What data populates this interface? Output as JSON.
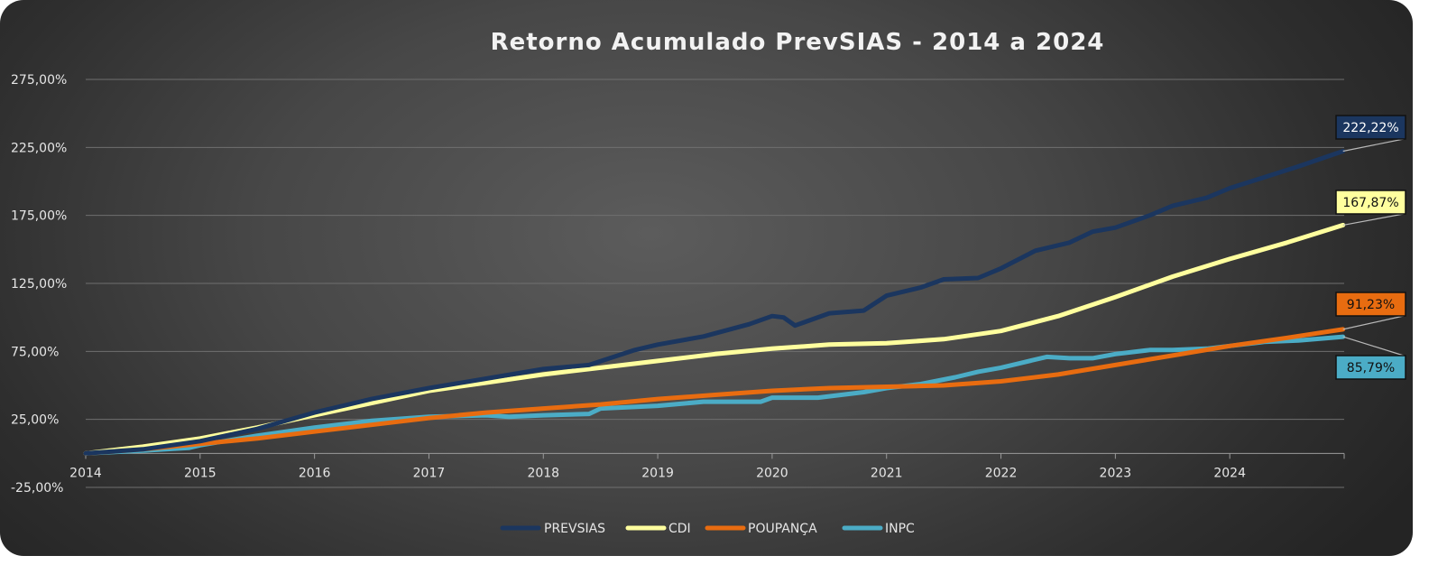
{
  "chart_data": {
    "type": "line",
    "title": "Retorno Acumulado PrevSIAS - 2014 a 2024",
    "xlabel": "",
    "ylabel": "",
    "x_ticks": [
      "2014",
      "2015",
      "2016",
      "2017",
      "2018",
      "2019",
      "2020",
      "2021",
      "2022",
      "2023",
      "2024"
    ],
    "y_ticks": [
      "275,00%",
      "225,00%",
      "175,00%",
      "125,00%",
      "75,00%",
      "25,00%",
      "-25,00%"
    ],
    "xlim": [
      2014.0,
      2025.0
    ],
    "ylim": [
      -25,
      275
    ],
    "grid": "horizontal",
    "legend_position": "bottom",
    "series": [
      {
        "name": "PREVSIAS",
        "color": "#1b365f",
        "end_label": "222,22%",
        "points": [
          [
            2014.0,
            0
          ],
          [
            2014.5,
            3
          ],
          [
            2015.0,
            9
          ],
          [
            2015.5,
            18
          ],
          [
            2016.0,
            30
          ],
          [
            2016.5,
            40
          ],
          [
            2017.0,
            48
          ],
          [
            2017.5,
            55
          ],
          [
            2018.0,
            62
          ],
          [
            2018.4,
            65
          ],
          [
            2018.8,
            76
          ],
          [
            2019.0,
            80
          ],
          [
            2019.4,
            86
          ],
          [
            2019.8,
            95
          ],
          [
            2020.0,
            101
          ],
          [
            2020.1,
            100
          ],
          [
            2020.2,
            94
          ],
          [
            2020.5,
            103
          ],
          [
            2020.8,
            105
          ],
          [
            2021.0,
            116
          ],
          [
            2021.3,
            122
          ],
          [
            2021.5,
            128
          ],
          [
            2021.8,
            129
          ],
          [
            2022.0,
            136
          ],
          [
            2022.3,
            149
          ],
          [
            2022.6,
            155
          ],
          [
            2022.8,
            163
          ],
          [
            2023.0,
            166
          ],
          [
            2023.3,
            175
          ],
          [
            2023.5,
            182
          ],
          [
            2023.8,
            188
          ],
          [
            2024.0,
            195
          ],
          [
            2024.3,
            203
          ],
          [
            2024.6,
            211
          ],
          [
            2024.99,
            222.22
          ]
        ]
      },
      {
        "name": "CDI",
        "color": "#ffff9e",
        "end_label": "167,87%",
        "points": [
          [
            2014.0,
            0
          ],
          [
            2014.5,
            5
          ],
          [
            2015.0,
            11
          ],
          [
            2015.5,
            19
          ],
          [
            2016.0,
            28
          ],
          [
            2016.5,
            37
          ],
          [
            2017.0,
            46
          ],
          [
            2017.5,
            52
          ],
          [
            2018.0,
            58
          ],
          [
            2018.5,
            63
          ],
          [
            2019.0,
            68
          ],
          [
            2019.5,
            73
          ],
          [
            2020.0,
            77
          ],
          [
            2020.5,
            80
          ],
          [
            2021.0,
            81
          ],
          [
            2021.5,
            84
          ],
          [
            2022.0,
            90
          ],
          [
            2022.5,
            101
          ],
          [
            2023.0,
            115
          ],
          [
            2023.5,
            130
          ],
          [
            2024.0,
            143
          ],
          [
            2024.5,
            155
          ],
          [
            2024.99,
            167.87
          ]
        ]
      },
      {
        "name": "POUPANÇA",
        "color": "#e86c10",
        "end_label": "91,23%",
        "points": [
          [
            2014.0,
            0
          ],
          [
            2014.5,
            3
          ],
          [
            2015.0,
            7
          ],
          [
            2015.5,
            11
          ],
          [
            2016.0,
            16
          ],
          [
            2016.5,
            21
          ],
          [
            2017.0,
            26
          ],
          [
            2017.5,
            30
          ],
          [
            2018.0,
            33
          ],
          [
            2018.5,
            36
          ],
          [
            2019.0,
            40
          ],
          [
            2019.5,
            43
          ],
          [
            2020.0,
            46
          ],
          [
            2020.5,
            48
          ],
          [
            2021.0,
            49
          ],
          [
            2021.5,
            50
          ],
          [
            2022.0,
            53
          ],
          [
            2022.5,
            58
          ],
          [
            2023.0,
            65
          ],
          [
            2023.5,
            72
          ],
          [
            2024.0,
            79
          ],
          [
            2024.5,
            85
          ],
          [
            2024.99,
            91.23
          ]
        ]
      },
      {
        "name": "INPC",
        "color": "#4bacc6",
        "end_label": "85,79%",
        "points": [
          [
            2014.0,
            0
          ],
          [
            2014.5,
            2
          ],
          [
            2014.9,
            4
          ],
          [
            2015.0,
            6
          ],
          [
            2015.5,
            13
          ],
          [
            2016.0,
            19
          ],
          [
            2016.5,
            24
          ],
          [
            2017.0,
            27
          ],
          [
            2017.5,
            28
          ],
          [
            2017.7,
            27
          ],
          [
            2018.0,
            28
          ],
          [
            2018.4,
            29
          ],
          [
            2018.5,
            33
          ],
          [
            2019.0,
            35
          ],
          [
            2019.4,
            38
          ],
          [
            2019.9,
            38
          ],
          [
            2020.0,
            41
          ],
          [
            2020.4,
            41
          ],
          [
            2020.8,
            45
          ],
          [
            2021.0,
            48
          ],
          [
            2021.3,
            51
          ],
          [
            2021.6,
            56
          ],
          [
            2021.8,
            60
          ],
          [
            2022.0,
            63
          ],
          [
            2022.2,
            67
          ],
          [
            2022.4,
            71
          ],
          [
            2022.6,
            70
          ],
          [
            2022.8,
            70
          ],
          [
            2023.0,
            73
          ],
          [
            2023.3,
            76
          ],
          [
            2023.5,
            76
          ],
          [
            2023.8,
            77
          ],
          [
            2024.0,
            79
          ],
          [
            2024.3,
            82
          ],
          [
            2024.6,
            83
          ],
          [
            2024.99,
            85.79
          ]
        ]
      }
    ]
  }
}
